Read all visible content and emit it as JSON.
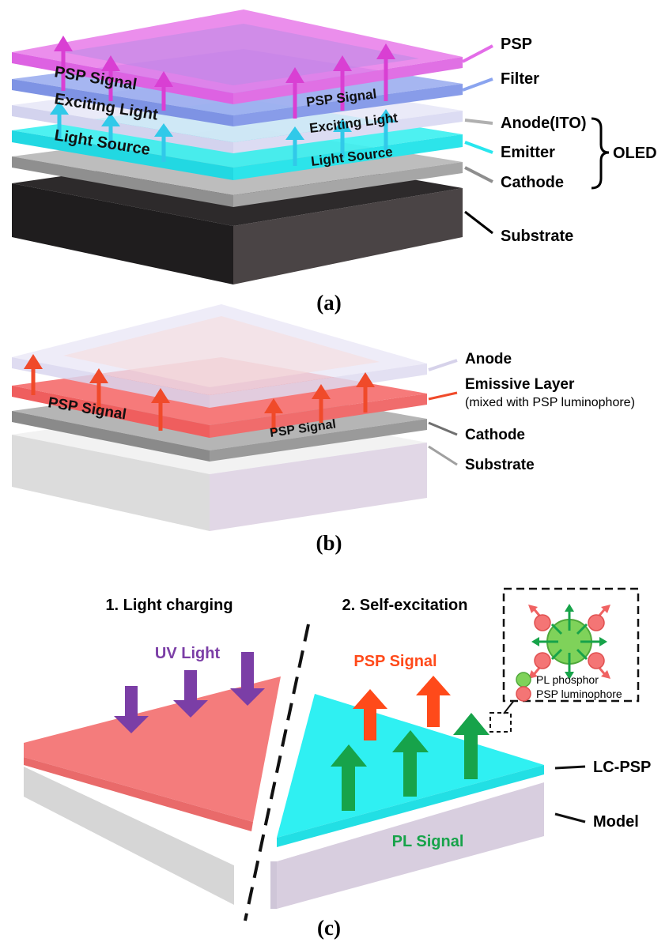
{
  "panel_a": {
    "layer_labels": {
      "psp": "PSP",
      "filter": "Filter",
      "anode": "Anode(ITO)",
      "emitter": "Emitter",
      "cathode": "Cathode",
      "substrate": "Substrate",
      "oled": "OLED"
    },
    "left_texts": {
      "signal": "PSP Signal",
      "exciting": "Exciting Light",
      "source": "Light Source"
    },
    "right_texts": {
      "signal": "PSP Signal",
      "exciting": "Exciting Light",
      "source": "Light Source"
    },
    "caption": "(a)",
    "colors": {
      "psp": "#e36ce8",
      "filter": "#8aa4ef",
      "anode": "#dcdcf4",
      "emitter": "#28e6ee",
      "cathode": "#9c9c9c",
      "substrate": "#3b3738",
      "signal_arrow": "#d93fd3",
      "excite_arrow": "#2fa8e8"
    }
  },
  "panel_b": {
    "layer_labels": {
      "anode": "Anode",
      "emissive": "Emissive Layer",
      "emissive_note": "(mixed with PSP luminophore)",
      "cathode": "Cathode",
      "substrate": "Substrate"
    },
    "left_signal": "PSP Signal",
    "right_signal": "PSP Signal",
    "caption": "(b)",
    "colors": {
      "anode": "#e4e2f4",
      "emissive": "#f46a6a",
      "cathode": "#8e8e8e",
      "substrate": "#e8e4ec",
      "arrow": "#f04a2a"
    }
  },
  "panel_c": {
    "title_left": "1. Light charging",
    "title_right": "2. Self-excitation",
    "uv_light": "UV Light",
    "psp_signal": "PSP Signal",
    "pl_signal": "PL Signal",
    "lc_psp": "LC-PSP",
    "model": "Model",
    "legend": {
      "pl_phosphor": "PL phosphor",
      "psp_luminophore": "PSP luminophore"
    },
    "caption": "(c)",
    "colors": {
      "uv_arrow": "#7b3ea6",
      "psp_arrow": "#ff4a1a",
      "pl_arrow": "#17a34a",
      "left_layer": "#f47c7c",
      "right_layer": "#2ff0f2",
      "model": "#d8d0e0",
      "phosphor": "#7fd25a",
      "luminophore": "#f47575"
    }
  }
}
